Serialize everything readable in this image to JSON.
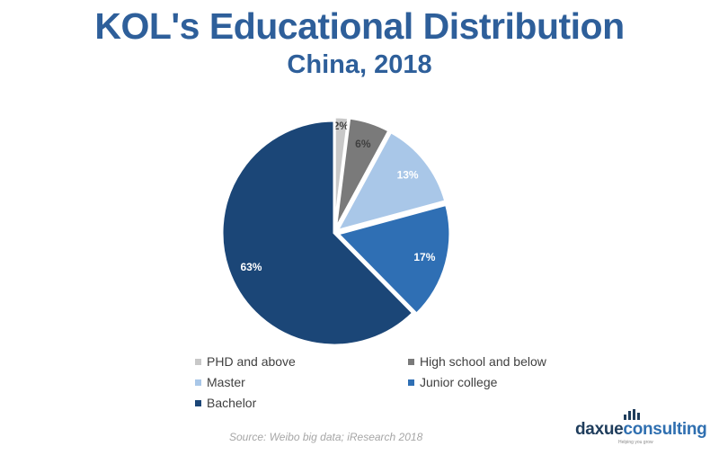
{
  "header": {
    "title": "KOL's Educational Distribution",
    "subtitle": "China, 2018"
  },
  "chart_data": {
    "type": "pie",
    "title": "KOL's Educational Distribution",
    "subtitle": "China, 2018",
    "categories": [
      "PHD and above",
      "High school and below",
      "Master",
      "Junior college",
      "Bachelor"
    ],
    "values": [
      2,
      6,
      13,
      17,
      63
    ],
    "labels": [
      "2%",
      "6%",
      "13%",
      "17%",
      "63%"
    ],
    "colors": [
      "#c8c8c8",
      "#7a7a7a",
      "#a9c7e8",
      "#2f6fb4",
      "#1b4677"
    ],
    "legend_position": "bottom"
  },
  "legend": [
    {
      "label": "PHD and above",
      "color": "#c8c8c8"
    },
    {
      "label": "High school and below",
      "color": "#7a7a7a"
    },
    {
      "label": "Master",
      "color": "#a9c7e8"
    },
    {
      "label": "Junior college",
      "color": "#2f6fb4"
    },
    {
      "label": "Bachelor",
      "color": "#1b4677"
    }
  ],
  "source": "Source: Weibo big data; iResearch 2018",
  "logo": {
    "text_dark": "daxue",
    "text_accent": "consulting",
    "tagline": "Helping you grow"
  }
}
